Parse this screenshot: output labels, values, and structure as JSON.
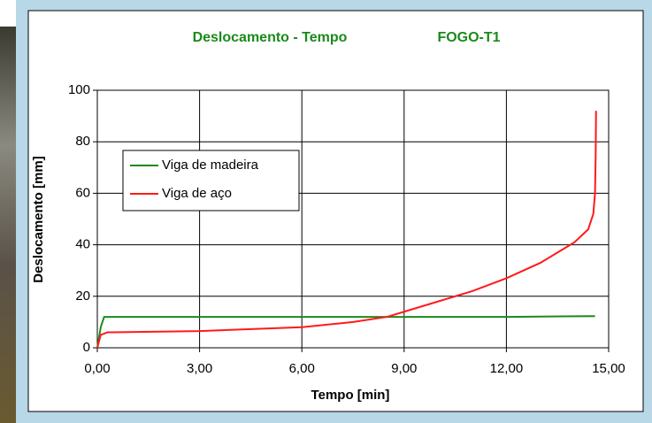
{
  "chart_data": {
    "type": "line",
    "title": "Deslocamento - Tempo",
    "subtitle": "FOGO-T1",
    "x_label": "Tempo [min]",
    "y_label": "Deslocamento [mm]",
    "xlim": [
      0,
      15
    ],
    "ylim": [
      0,
      100
    ],
    "xticks": [
      {
        "value": 0,
        "label": "0,00"
      },
      {
        "value": 3,
        "label": "3,00"
      },
      {
        "value": 6,
        "label": "6,00"
      },
      {
        "value": 9,
        "label": "9,00"
      },
      {
        "value": 12,
        "label": "12,00"
      },
      {
        "value": 15,
        "label": "15,00"
      }
    ],
    "yticks": [
      0,
      20,
      40,
      60,
      80,
      100
    ],
    "grid": true,
    "legend": "upper left",
    "series": [
      {
        "name": "Viga de madeira",
        "color": "#1a8a1a",
        "x": [
          0,
          0.1,
          0.2,
          3,
          6,
          9,
          12,
          14.6
        ],
        "values": [
          0,
          8,
          12,
          12,
          12,
          12,
          12,
          12.3
        ]
      },
      {
        "name": "Viga de aço",
        "color": "#ff1a1a",
        "x": [
          0,
          0.1,
          0.3,
          3,
          6,
          7.5,
          8.5,
          9,
          10,
          11,
          12,
          13,
          14,
          14.4,
          14.55,
          14.6,
          14.62,
          14.63
        ],
        "values": [
          0,
          5,
          6,
          6.5,
          8,
          10,
          12,
          14,
          18,
          22,
          27,
          33,
          41,
          46,
          52,
          60,
          75,
          92
        ]
      }
    ]
  }
}
